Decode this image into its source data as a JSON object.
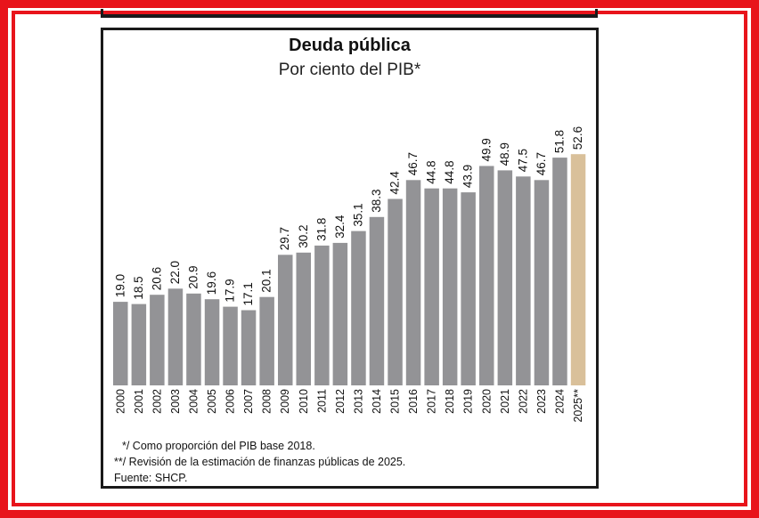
{
  "chart_data": {
    "type": "bar",
    "title": "Deuda pública",
    "subtitle": "Por ciento del PIB*",
    "categories": [
      "2000",
      "2001",
      "2002",
      "2003",
      "2004",
      "2005",
      "2006",
      "2007",
      "2008",
      "2009",
      "2010",
      "2011",
      "2012",
      "2013",
      "2014",
      "2015",
      "2016",
      "2017",
      "2018",
      "2019",
      "2020",
      "2021",
      "2022",
      "2023",
      "2024",
      "2025**"
    ],
    "values": [
      19.0,
      18.5,
      20.6,
      22.0,
      20.9,
      19.6,
      17.9,
      17.1,
      20.1,
      29.7,
      30.2,
      31.8,
      32.4,
      35.1,
      38.3,
      42.4,
      46.7,
      44.8,
      44.8,
      43.9,
      49.9,
      48.9,
      47.5,
      46.7,
      51.8,
      52.6
    ],
    "value_labels": [
      "19.0",
      "18.5",
      "20.6",
      "22.0",
      "20.9",
      "19.6",
      "17.9",
      "17.1",
      "20.1",
      "29.7",
      "30.2",
      "31.8",
      "32.4",
      "35.1",
      "38.3",
      "42.4",
      "46.7",
      "44.8",
      "44.8",
      "43.9",
      "49.9",
      "48.9",
      "47.5",
      "46.7",
      "51.8",
      "52.6"
    ],
    "ylim": [
      0,
      60
    ],
    "grid": false,
    "legend": "none",
    "colors": {
      "bar": "#939396",
      "highlight": "#d9c09a"
    },
    "highlight_index": 25
  },
  "notes": {
    "note1": "*/ Como proporción del PIB base 2018.",
    "note2": "**/ Revisión de la estimación de finanzas públicas de 2025.",
    "source": "Fuente: SHCP."
  }
}
